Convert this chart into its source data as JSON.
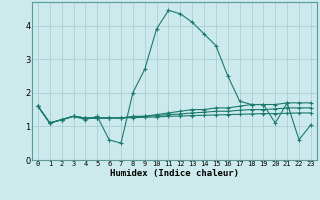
{
  "xlabel": "Humidex (Indice chaleur)",
  "background_color": "#cce9ec",
  "grid_color": "#aacfd4",
  "line_color": "#1a7a6e",
  "x_values": [
    0,
    1,
    2,
    3,
    4,
    5,
    6,
    7,
    8,
    9,
    10,
    11,
    12,
    13,
    14,
    15,
    16,
    17,
    18,
    19,
    20,
    21,
    22,
    23
  ],
  "series": [
    [
      1.6,
      1.1,
      1.2,
      1.3,
      1.2,
      1.3,
      0.6,
      0.5,
      2.0,
      2.7,
      3.9,
      4.45,
      4.35,
      4.1,
      3.75,
      3.4,
      2.5,
      1.75,
      1.65,
      1.65,
      1.65,
      1.7,
      0.6,
      1.05
    ],
    [
      1.6,
      1.1,
      1.2,
      1.3,
      1.25,
      1.25,
      1.25,
      1.25,
      1.3,
      1.3,
      1.35,
      1.4,
      1.45,
      1.5,
      1.5,
      1.55,
      1.55,
      1.6,
      1.65,
      1.65,
      1.1,
      1.7,
      1.7,
      1.7
    ],
    [
      1.6,
      1.1,
      1.2,
      1.3,
      1.25,
      1.25,
      1.25,
      1.25,
      1.28,
      1.3,
      1.32,
      1.35,
      1.37,
      1.4,
      1.42,
      1.45,
      1.45,
      1.48,
      1.5,
      1.5,
      1.52,
      1.55,
      1.55,
      1.55
    ],
    [
      1.6,
      1.1,
      1.2,
      1.3,
      1.25,
      1.25,
      1.25,
      1.25,
      1.26,
      1.27,
      1.28,
      1.3,
      1.31,
      1.32,
      1.33,
      1.34,
      1.35,
      1.36,
      1.37,
      1.38,
      1.38,
      1.39,
      1.4,
      1.4
    ]
  ],
  "ylim": [
    0,
    4.7
  ],
  "xlim": [
    -0.5,
    23.5
  ],
  "yticks": [
    0,
    1,
    2,
    3,
    4
  ],
  "xticks": [
    0,
    1,
    2,
    3,
    4,
    5,
    6,
    7,
    8,
    9,
    10,
    11,
    12,
    13,
    14,
    15,
    16,
    17,
    18,
    19,
    20,
    21,
    22,
    23
  ],
  "xtick_labels": [
    "0",
    "1",
    "2",
    "3",
    "4",
    "5",
    "6",
    "7",
    "8",
    "9",
    "10",
    "11",
    "12",
    "13",
    "14",
    "15",
    "16",
    "17",
    "18",
    "19",
    "20",
    "21",
    "22",
    "23"
  ],
  "ytick_labels": [
    "0",
    "1",
    "2",
    "3",
    "4"
  ]
}
